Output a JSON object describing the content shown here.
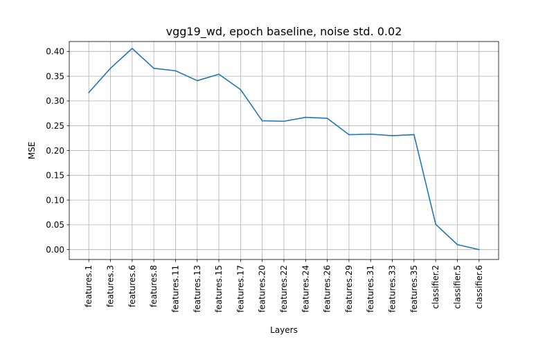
{
  "chart_data": {
    "type": "line",
    "title": "vgg19_wd, epoch baseline, noise std. 0.02",
    "xlabel": "Layers",
    "ylabel": "MSE",
    "categories": [
      "features.1",
      "features.3",
      "features.6",
      "features.8",
      "features.11",
      "features.13",
      "features.15",
      "features.17",
      "features.20",
      "features.22",
      "features.24",
      "features.26",
      "features.29",
      "features.31",
      "features.33",
      "features.35",
      "classifier.2",
      "classifier.5",
      "classifier.6"
    ],
    "series": [
      {
        "values": [
          0.317,
          0.366,
          0.406,
          0.366,
          0.361,
          0.341,
          0.354,
          0.323,
          0.26,
          0.259,
          0.267,
          0.265,
          0.232,
          0.233,
          0.23,
          0.232,
          0.051,
          0.01,
          0.0
        ]
      }
    ],
    "ylim": [
      -0.02,
      0.42
    ],
    "yticks": [
      0.0,
      0.05,
      0.1,
      0.15,
      0.2,
      0.25,
      0.3,
      0.35,
      0.4
    ],
    "ytick_labels": [
      "0.00",
      "0.05",
      "0.10",
      "0.15",
      "0.20",
      "0.25",
      "0.30",
      "0.35",
      "0.40"
    ],
    "grid": true,
    "legend": "none",
    "colors": {
      "line": "#1f77b4",
      "grid": "#b0b0b0",
      "axis": "#000000"
    }
  }
}
